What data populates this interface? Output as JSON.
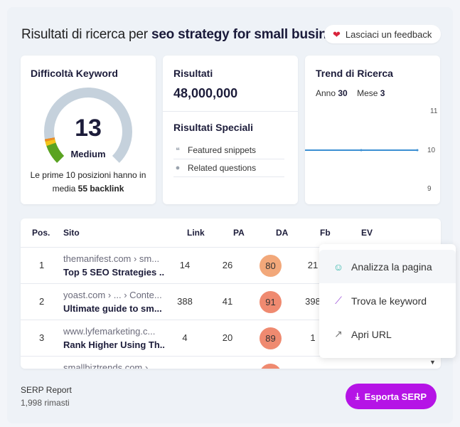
{
  "header": {
    "prefix": "Risultati di ricerca per ",
    "query": "seo strategy for small busin...",
    "feedback_label": "Lasciaci un feedback"
  },
  "keyword_difficulty": {
    "title": "Difficoltà Keyword",
    "value": "13",
    "level": "Medium",
    "desc_prefix": "Le prime 10 posizioni hanno in media ",
    "desc_bold": "55 backlink",
    "gauge_fraction": 0.13,
    "colors": {
      "track": "#c5d1dc",
      "low": "#5aa321",
      "mid": "#f5c51b",
      "accent": "#f08a22"
    }
  },
  "results": {
    "title": "Risultati",
    "count": "48,000,000",
    "special_title": "Risultati Speciali",
    "features": [
      {
        "icon": "quote-icon",
        "label": "Featured snippets"
      },
      {
        "icon": "question-icon",
        "label": "Related questions"
      }
    ]
  },
  "trend": {
    "title": "Trend di Ricerca",
    "year_label": "Anno",
    "year_value": "30",
    "month_label": "Mese",
    "month_value": "3",
    "y_ticks": [
      "11",
      "10",
      "9"
    ],
    "line_color": "#3b8fd3"
  },
  "table": {
    "columns": [
      "Pos.",
      "Sito",
      "Link",
      "PA",
      "DA",
      "Fb",
      "EV"
    ],
    "rows": [
      {
        "pos": "1",
        "url": "themanifest.com › sm...",
        "title": "Top 5 SEO Strategies ...",
        "link": "14",
        "pa": "26",
        "da": "80",
        "da_color": "#f2a87a",
        "fb": "21"
      },
      {
        "pos": "2",
        "url": "yoast.com › ... › Conte...",
        "title": "Ultimate guide to sm...",
        "link": "388",
        "pa": "41",
        "da": "91",
        "da_color": "#ef8a70",
        "fb": "398"
      },
      {
        "pos": "3",
        "url": "www.lyfemarketing.c...",
        "title": "Rank Higher Using Th...",
        "link": "4",
        "pa": "20",
        "da": "89",
        "da_color": "#ef8a70",
        "fb": "1"
      },
      {
        "pos": "",
        "url": "smallbiztrends.com ›",
        "title": "",
        "link": "",
        "pa": "",
        "da": "",
        "da_color": "#ef8a70",
        "fb": ""
      }
    ]
  },
  "context_menu": {
    "items": [
      {
        "icon": "analyze-icon",
        "label": "Analizza la pagina"
      },
      {
        "icon": "keywords-icon",
        "label": "Trova le keyword"
      },
      {
        "icon": "external-link-icon",
        "label": "Apri URL"
      }
    ]
  },
  "footer": {
    "title": "SERP Report",
    "remaining": "1,998 rimasti",
    "export_label": "Esporta SERP",
    "export_color": "#b513e6"
  }
}
